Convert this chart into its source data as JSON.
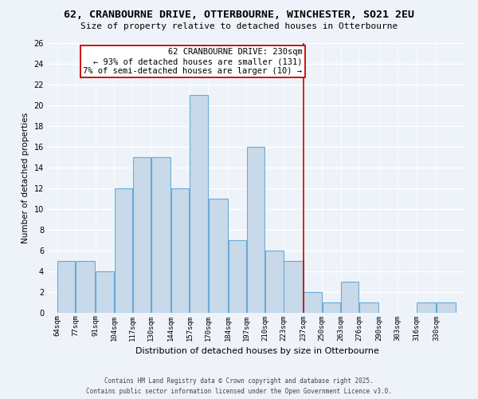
{
  "title": "62, CRANBOURNE DRIVE, OTTERBOURNE, WINCHESTER, SO21 2EU",
  "subtitle": "Size of property relative to detached houses in Otterbourne",
  "xlabel": "Distribution of detached houses by size in Otterbourne",
  "ylabel": "Number of detached properties",
  "bin_labels": [
    "64sqm",
    "77sqm",
    "91sqm",
    "104sqm",
    "117sqm",
    "130sqm",
    "144sqm",
    "157sqm",
    "170sqm",
    "184sqm",
    "197sqm",
    "210sqm",
    "223sqm",
    "237sqm",
    "250sqm",
    "263sqm",
    "276sqm",
    "290sqm",
    "303sqm",
    "316sqm",
    "330sqm"
  ],
  "bar_heights": [
    5,
    5,
    4,
    12,
    15,
    15,
    12,
    21,
    11,
    7,
    16,
    6,
    5,
    2,
    1,
    3,
    1,
    0,
    0,
    1,
    1
  ],
  "bar_color": "#c8d9ea",
  "bar_edge_color": "#6aaad4",
  "vline_x_index": 13,
  "vline_color": "#cc0000",
  "annotation_title": "62 CRANBOURNE DRIVE: 230sqm",
  "annotation_line1": "← 93% of detached houses are smaller (131)",
  "annotation_line2": "7% of semi-detached houses are larger (10) →",
  "ylim": [
    0,
    26
  ],
  "yticks": [
    0,
    2,
    4,
    6,
    8,
    10,
    12,
    14,
    16,
    18,
    20,
    22,
    24,
    26
  ],
  "bin_edges": [
    64,
    77,
    91,
    104,
    117,
    130,
    144,
    157,
    170,
    184,
    197,
    210,
    223,
    237,
    250,
    263,
    276,
    290,
    303,
    316,
    330,
    344
  ],
  "footer_line1": "Contains HM Land Registry data © Crown copyright and database right 2025.",
  "footer_line2": "Contains public sector information licensed under the Open Government Licence v3.0.",
  "background_color": "#eef3f9",
  "grid_color": "#ffffff",
  "title_fontsize": 9.5,
  "subtitle_fontsize": 8.0,
  "ylabel_fontsize": 7.5,
  "xlabel_fontsize": 8.0,
  "tick_fontsize": 7.0,
  "xtick_fontsize": 6.5,
  "annotation_fontsize": 7.5,
  "footer_fontsize": 5.5
}
